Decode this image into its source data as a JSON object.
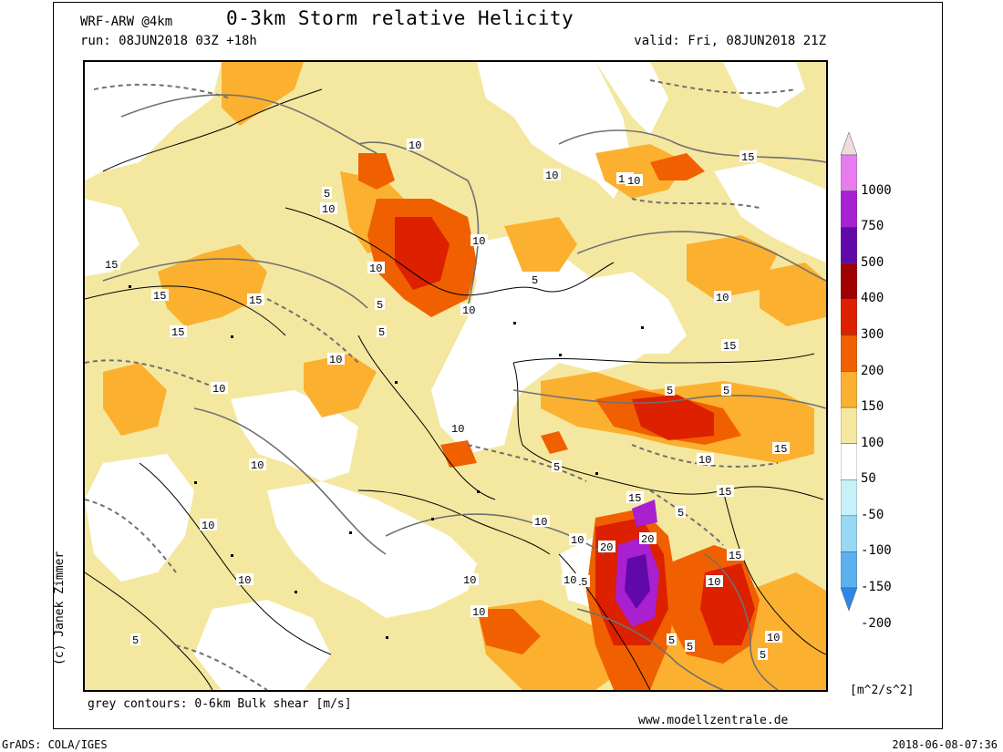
{
  "header": {
    "model": "WRF-ARW @4km",
    "title": "0-3km Storm relative Helicity",
    "run": "run: 08JUN2018 03Z +18h",
    "valid": "valid: Fri, 08JUN2018 21Z"
  },
  "footer": {
    "contours_note": "grey contours: 0-6km Bulk shear [m/s]",
    "website": "www.modellzentrale.de",
    "software": "GrADS: COLA/IGES",
    "timestamp": "2018-06-08-07:36",
    "credit": "(c) Janek Zimmer"
  },
  "legend": {
    "units": "[m^2/s^2]",
    "labels": [
      "1000",
      "750",
      "500",
      "400",
      "300",
      "200",
      "150",
      "100",
      "50",
      "-50",
      "-100",
      "-150",
      "-200"
    ],
    "colors": [
      "#efdcdc",
      "#e87cef",
      "#a820d0",
      "#6008a8",
      "#a00000",
      "#dc2000",
      "#f06000",
      "#fcb030",
      "#f4e8a0",
      "#ffffff",
      "#c8f0f8",
      "#98d8f4",
      "#5cb0f0",
      "#2c88e8"
    ]
  },
  "map": {
    "contour_labels": [
      {
        "t": "15"
      },
      {
        "t": "15"
      },
      {
        "t": "15"
      },
      {
        "t": "15"
      },
      {
        "t": "15"
      },
      {
        "t": "10"
      },
      {
        "t": "10"
      },
      {
        "t": "10"
      },
      {
        "t": "10"
      },
      {
        "t": "10"
      },
      {
        "t": "5"
      },
      {
        "t": "10"
      },
      {
        "t": "10"
      },
      {
        "t": "5"
      },
      {
        "t": "10"
      },
      {
        "t": "5"
      },
      {
        "t": "5"
      },
      {
        "t": "10"
      },
      {
        "t": "10"
      },
      {
        "t": "15"
      },
      {
        "t": "15"
      },
      {
        "t": "10"
      },
      {
        "t": "5"
      },
      {
        "t": "5"
      },
      {
        "t": "10"
      },
      {
        "t": "5"
      },
      {
        "t": "10"
      },
      {
        "t": "10"
      },
      {
        "t": "15"
      },
      {
        "t": "5"
      },
      {
        "t": "10"
      },
      {
        "t": "10"
      },
      {
        "t": "10"
      },
      {
        "t": "10"
      },
      {
        "t": "10"
      },
      {
        "t": "10"
      },
      {
        "t": "20"
      },
      {
        "t": "20"
      },
      {
        "t": "15"
      },
      {
        "t": "15"
      },
      {
        "t": "10"
      },
      {
        "t": "15"
      },
      {
        "t": "10"
      },
      {
        "t": "5"
      },
      {
        "t": "5"
      },
      {
        "t": "10"
      },
      {
        "t": "5"
      },
      {
        "t": "5"
      }
    ]
  }
}
